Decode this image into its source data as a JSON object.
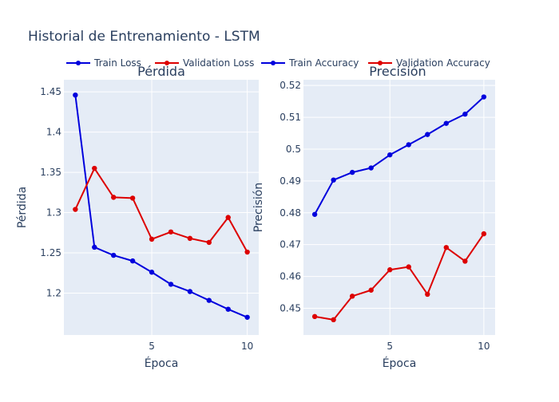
{
  "chart_data": {
    "title": "Historial de Entrenamiento - LSTM",
    "legend": {
      "placement": "top",
      "items": [
        {
          "name": "Train Loss",
          "color": "#0000dd"
        },
        {
          "name": "Validation Loss",
          "color": "#dd0000"
        },
        {
          "name": "Train Accuracy",
          "color": "#0000dd"
        },
        {
          "name": "Validation Accuracy",
          "color": "#dd0000"
        }
      ]
    },
    "subplots": [
      {
        "type": "line",
        "title": "Pérdida",
        "xlabel": "Época",
        "ylabel": "Pérdida",
        "xlim": [
          0.4,
          10.6
        ],
        "ylim": [
          1.148,
          1.465
        ],
        "xticks": [
          5,
          10
        ],
        "yticks": [
          1.2,
          1.25,
          1.3,
          1.35,
          1.4,
          1.45
        ],
        "ytick_labels": [
          "1.2",
          "1.25",
          "1.3",
          "1.35",
          "1.4",
          "1.45"
        ],
        "x": [
          1,
          2,
          3,
          4,
          5,
          6,
          7,
          8,
          9,
          10
        ],
        "series": [
          {
            "name": "Train Loss",
            "color": "#0000dd",
            "values": [
              1.446,
              1.257,
              1.247,
              1.24,
              1.226,
              1.211,
              1.202,
              1.191,
              1.18,
              1.17
            ]
          },
          {
            "name": "Validation Loss",
            "color": "#dd0000",
            "values": [
              1.304,
              1.355,
              1.319,
              1.318,
              1.267,
              1.276,
              1.268,
              1.263,
              1.294,
              1.251
            ]
          }
        ]
      },
      {
        "type": "line",
        "title": "Precisión",
        "xlabel": "Época",
        "ylabel": "Precisión",
        "xlim": [
          0.4,
          10.6
        ],
        "ylim": [
          0.4416,
          0.5218
        ],
        "xticks": [
          5,
          10
        ],
        "yticks": [
          0.45,
          0.46,
          0.47,
          0.48,
          0.49,
          0.5,
          0.51,
          0.52
        ],
        "ytick_labels": [
          "0.45",
          "0.46",
          "0.47",
          "0.48",
          "0.49",
          "0.5",
          "0.51",
          "0.52"
        ],
        "x": [
          1,
          2,
          3,
          4,
          5,
          6,
          7,
          8,
          9,
          10
        ],
        "series": [
          {
            "name": "Train Accuracy",
            "color": "#0000dd",
            "values": [
              0.4795,
              0.4903,
              0.4927,
              0.4941,
              0.4982,
              0.5014,
              0.5046,
              0.5081,
              0.511,
              0.5164
            ]
          },
          {
            "name": "Validation Accuracy",
            "color": "#dd0000",
            "values": [
              0.4474,
              0.4464,
              0.4538,
              0.4557,
              0.4621,
              0.463,
              0.4544,
              0.4691,
              0.4648,
              0.4734
            ]
          }
        ]
      }
    ]
  }
}
